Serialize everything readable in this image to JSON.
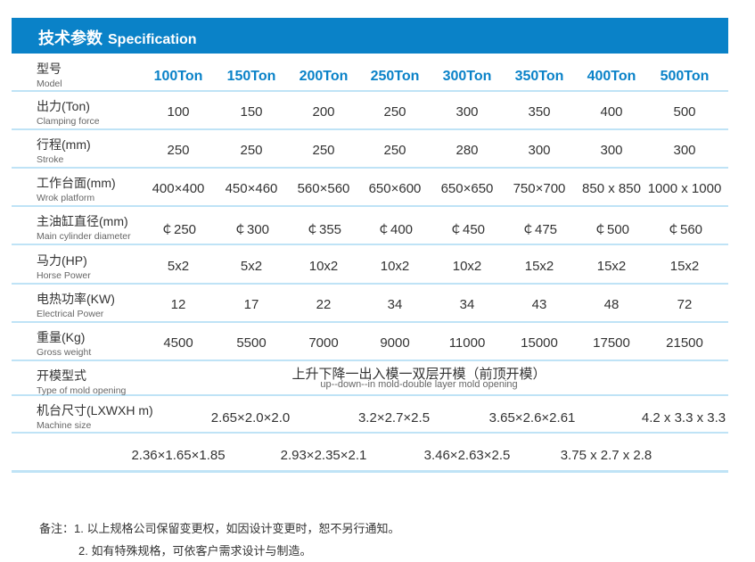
{
  "header": {
    "title_cn": "技术参数",
    "title_en": "Specification",
    "accent": "#0a82c8"
  },
  "columns": [
    "100Ton",
    "150Ton",
    "200Ton",
    "250Ton",
    "300Ton",
    "350Ton",
    "400Ton",
    "500Ton"
  ],
  "model_label": {
    "cn": "型号",
    "en": "Model"
  },
  "rows": [
    {
      "cn": "出力(Ton)",
      "en": "Clamping force",
      "values": [
        "100",
        "150",
        "200",
        "250",
        "300",
        "350",
        "400",
        "500"
      ]
    },
    {
      "cn": "行程(mm)",
      "en": "Stroke",
      "values": [
        "250",
        "250",
        "250",
        "250",
        "280",
        "300",
        "300",
        "300"
      ]
    },
    {
      "cn": "工作台面(mm)",
      "en": "Wrok platform",
      "values": [
        "400×400",
        "450×460",
        "560×560",
        "650×600",
        "650×650",
        "750×700",
        "850 x 850",
        "1000 x 1000"
      ]
    },
    {
      "cn": "主油缸直径(mm)",
      "en": "Main cylinder diameter",
      "values": [
        "￠250",
        "￠300",
        "￠355",
        "￠400",
        "￠450",
        "￠475",
        "￠500",
        "￠560"
      ]
    },
    {
      "cn": "马力(HP)",
      "en": "Horse Power",
      "values": [
        "5x2",
        "5x2",
        "10x2",
        "10x2",
        "10x2",
        "15x2",
        "15x2",
        "15x2"
      ]
    },
    {
      "cn": "电热功率(KW)",
      "en": "Electrical Power",
      "values": [
        "12",
        "17",
        "22",
        "34",
        "34",
        "43",
        "48",
        "72"
      ]
    },
    {
      "cn": "重量(Kg)",
      "en": "Gross weight",
      "values": [
        "4500",
        "5500",
        "7000",
        "9000",
        "11000",
        "15000",
        "17500",
        "21500"
      ]
    }
  ],
  "mold": {
    "cn": "开模型式",
    "en": "Type of mold opening",
    "value_cn": "上升下降一出入模一双层开模（前顶开模）",
    "value_en": "up--down--in mold-double layer mold opening"
  },
  "size": {
    "cn": "机台尺寸(LXWXH m)",
    "en": "Machine size",
    "line1": [
      "2.65×2.0×2.0",
      "3.2×2.7×2.5",
      "3.65×2.6×2.61",
      "4.2 x 3.3 x 3.3"
    ],
    "line2": [
      "2.36×1.65×1.85",
      "2.93×2.35×2.1",
      "3.46×2.63×2.5",
      "3.75 x 2.7 x 2.8"
    ]
  },
  "notes": [
    "备注：1. 以上规格公司保留变更权，如因设计变更时，恕不另行通知。",
    "2. 如有特殊规格，可依客户需求设计与制造。"
  ]
}
